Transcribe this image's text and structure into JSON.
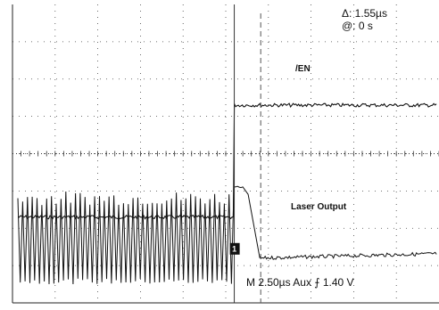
{
  "chart_data": {
    "type": "line",
    "title": "",
    "xlabel": "",
    "ylabel": "",
    "grid": true,
    "x_divisions": 10,
    "y_divisions": 8,
    "time_per_div": "2.50µs",
    "trigger_source": "Aux",
    "trigger_edge": "rising",
    "trigger_level": "1.40 V",
    "cursor": {
      "delta_label": "Δ: 1.55µs",
      "at_label": "@: 0 s",
      "delta_divisions": 0.62
    },
    "trigger_position_div": 5.2,
    "series": [
      {
        "name": "/EN",
        "low_level_div": 2.3,
        "high_level_div": 5.3,
        "transition_div": 5.2
      },
      {
        "name": "Laser Output",
        "oscillation_max_div": 3.0,
        "oscillation_min_div": 0.5,
        "oscillation_periods": 45,
        "flat_level_div": 3.1,
        "off_start_div": 5.4,
        "off_end_div": 5.8,
        "off_level_div": 1.2,
        "ground_marker_div": 1.45
      }
    ]
  },
  "readout": {
    "delta": "Δ: 1.55µs",
    "at": "@: 0 s",
    "bottom_line": "M 2.50µs  Aux ⨍    1.40 V"
  },
  "labels": {
    "en": "/EN",
    "laser": "Laser Output",
    "ground_marker": "1"
  }
}
